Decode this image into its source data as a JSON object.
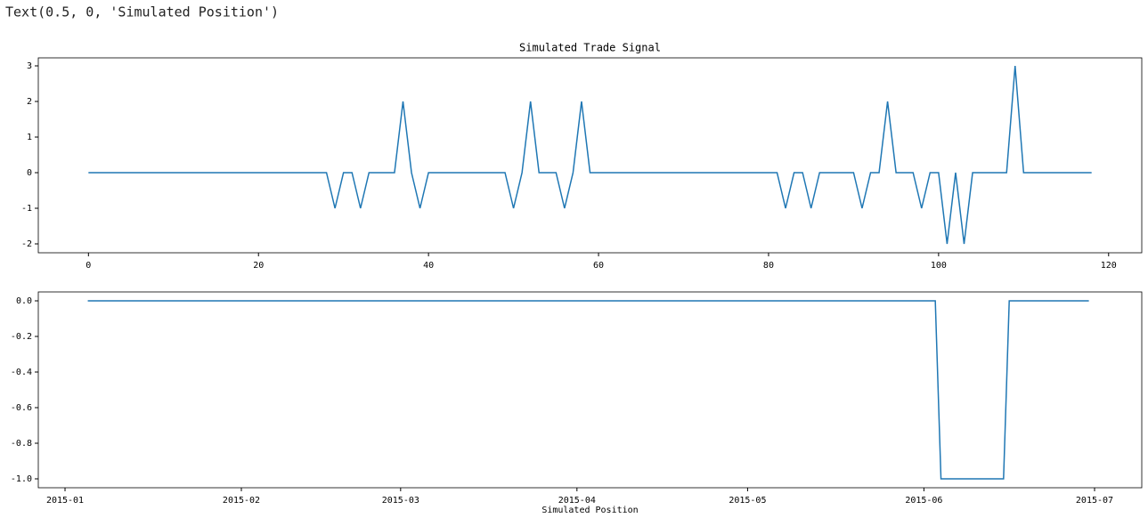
{
  "output_text": "Text(0.5, 0, 'Simulated Position')",
  "chart_data": [
    {
      "type": "line",
      "title": "Simulated Trade Signal",
      "color": "#1f77b4",
      "x": [
        0,
        1,
        2,
        3,
        4,
        5,
        6,
        7,
        8,
        9,
        10,
        11,
        12,
        13,
        14,
        15,
        16,
        17,
        18,
        19,
        20,
        21,
        22,
        23,
        24,
        25,
        26,
        27,
        28,
        29,
        30,
        31,
        32,
        33,
        34,
        35,
        36,
        37,
        38,
        39,
        40,
        41,
        42,
        43,
        44,
        45,
        46,
        47,
        48,
        49,
        50,
        51,
        52,
        53,
        54,
        55,
        56,
        57,
        58,
        59,
        60,
        61,
        62,
        63,
        64,
        65,
        66,
        67,
        68,
        69,
        70,
        71,
        72,
        73,
        74,
        75,
        76,
        77,
        78,
        79,
        80,
        81,
        82,
        83,
        84,
        85,
        86,
        87,
        88,
        89,
        90,
        91,
        92,
        93,
        94,
        95,
        96,
        97,
        98,
        99,
        100,
        101,
        102,
        103,
        104,
        105,
        106,
        107,
        108,
        109,
        110,
        111,
        112,
        113,
        114,
        115,
        116,
        117,
        118
      ],
      "values": [
        0,
        0,
        0,
        0,
        0,
        0,
        0,
        0,
        0,
        0,
        0,
        0,
        0,
        0,
        0,
        0,
        0,
        0,
        0,
        0,
        0,
        0,
        0,
        0,
        0,
        0,
        0,
        0,
        0,
        -1,
        0,
        0,
        -1,
        0,
        0,
        0,
        0,
        2,
        0,
        -1,
        0,
        0,
        0,
        0,
        0,
        0,
        0,
        0,
        0,
        0,
        -1,
        0,
        2,
        0,
        0,
        0,
        -1,
        0,
        2,
        0,
        0,
        0,
        0,
        0,
        0,
        0,
        0,
        0,
        0,
        0,
        0,
        0,
        0,
        0,
        0,
        0,
        0,
        0,
        0,
        0,
        0,
        0,
        -1,
        0,
        0,
        -1,
        0,
        0,
        0,
        0,
        0,
        -1,
        0,
        0,
        2,
        0,
        0,
        0,
        -1,
        0,
        0,
        -2,
        0,
        -2,
        0,
        0,
        0,
        0,
        0,
        3,
        0,
        0,
        0,
        0,
        0,
        0,
        0,
        0,
        0
      ],
      "xlim": [
        -5.9,
        123.9
      ],
      "xticks": [
        0,
        20,
        40,
        60,
        80,
        100,
        120
      ],
      "ylim": [
        -2.25,
        3.225
      ],
      "yticks": [
        -2,
        -1,
        0,
        1,
        2,
        3
      ]
    },
    {
      "type": "line",
      "x_label": "Simulated Position",
      "color": "#1f77b4",
      "x": [
        4,
        153,
        154,
        165,
        166,
        180
      ],
      "values": [
        0,
        0,
        -1,
        -1,
        0,
        0
      ],
      "xlim": [
        -4.7,
        189.3
      ],
      "xticks": [
        {
          "value": 0,
          "label": "2015-01"
        },
        {
          "value": 31,
          "label": "2015-02"
        },
        {
          "value": 59,
          "label": "2015-03"
        },
        {
          "value": 90,
          "label": "2015-04"
        },
        {
          "value": 120,
          "label": "2015-05"
        },
        {
          "value": 151,
          "label": "2015-06"
        },
        {
          "value": 181,
          "label": "2015-07"
        }
      ],
      "ylim": [
        -1.05,
        0.05
      ],
      "yticks": [
        {
          "value": -1.0,
          "label": "-1.0"
        },
        -0.8,
        -0.6,
        -0.4,
        -0.2,
        {
          "value": 0.0,
          "label": "0.0"
        }
      ]
    }
  ]
}
